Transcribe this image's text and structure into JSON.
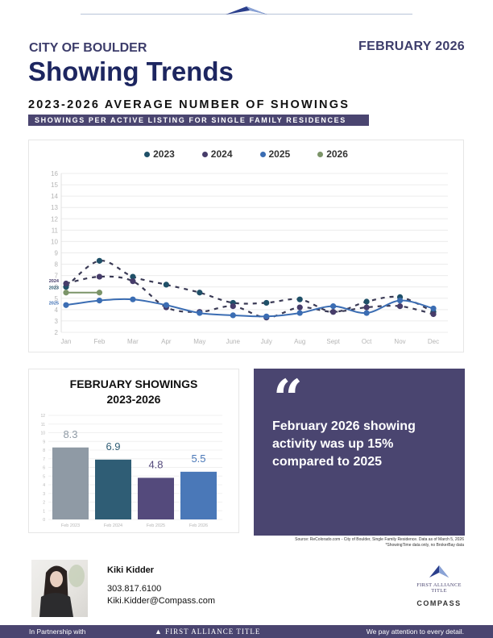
{
  "header": {
    "city": "CITY OF BOULDER",
    "month": "FEBRUARY 2026",
    "title": "Showing Trends",
    "subtitle": "2023-2026 AVERAGE NUMBER OF SHOWINGS",
    "banner": "SHOWINGS PER ACTIVE LISTING FOR SINGLE FAMILY RESIDENCES"
  },
  "colors": {
    "accent": "#4a4570",
    "title": "#1d2660",
    "s2023": "#1f5068",
    "s2024": "#463c6a",
    "s2025": "#3b6db3",
    "s2026": "#7b9468"
  },
  "chart_data": [
    {
      "type": "line",
      "title": "2023-2026 Average Number of Showings",
      "xlabel": "",
      "ylabel": "",
      "ylim": [
        2,
        16
      ],
      "yticks": [
        2,
        3,
        4,
        5,
        6,
        7,
        8,
        9,
        10,
        11,
        12,
        13,
        14,
        15,
        16
      ],
      "grid": true,
      "legend": "top-center",
      "categories": [
        "Jan",
        "Feb",
        "Mar",
        "Apr",
        "May",
        "June",
        "July",
        "Aug",
        "Sept",
        "Oct",
        "Nov",
        "Dec"
      ],
      "series": [
        {
          "name": "2023",
          "style": "dashed",
          "color": "#1f5068",
          "values": [
            6.0,
            8.3,
            6.9,
            6.2,
            5.5,
            4.6,
            4.6,
            4.9,
            3.8,
            4.7,
            5.1,
            3.8
          ]
        },
        {
          "name": "2024",
          "style": "dashed",
          "color": "#463c6a",
          "values": [
            6.3,
            6.9,
            6.5,
            4.2,
            3.8,
            4.3,
            3.3,
            4.2,
            3.8,
            4.2,
            4.3,
            3.6
          ]
        },
        {
          "name": "2025",
          "style": "solid",
          "color": "#3b6db3",
          "values": [
            4.4,
            4.8,
            4.9,
            4.4,
            3.7,
            3.5,
            3.4,
            3.7,
            4.3,
            3.7,
            4.8,
            4.1
          ]
        },
        {
          "name": "2026",
          "style": "solid",
          "color": "#7b9468",
          "values": [
            5.5,
            5.5
          ]
        }
      ],
      "annotations": [
        "2024",
        "2023",
        "2025"
      ]
    },
    {
      "type": "bar",
      "title": "FEBRUARY SHOWINGS 2023-2026",
      "categories": [
        "Feb 2023",
        "Feb 2024",
        "Feb 2025",
        "Feb 2026"
      ],
      "values": [
        8.3,
        6.9,
        4.8,
        5.5
      ],
      "labels": [
        "8.3",
        "6.9",
        "4.8",
        "5.5"
      ],
      "colors": [
        "#8f9aa5",
        "#2f5d75",
        "#544a7c",
        "#4a78b8"
      ],
      "ylim": [
        0,
        12
      ],
      "yticks": [
        0,
        1,
        2,
        3,
        4,
        5,
        6,
        7,
        8,
        9,
        10,
        11,
        12
      ],
      "grid": true
    }
  ],
  "bar_chart": {
    "title_line1": "FEBRUARY SHOWINGS",
    "title_line2": "2023-2026"
  },
  "quote": {
    "mark": "“",
    "text": "February 2026 showing activity was up 15% compared to 2025"
  },
  "source": {
    "line1": "Source: ReColorado.com - City of Boulder, Single Family Residence. Data as of March 5, 2026",
    "line2": "*ShowingTime data only, no BrokerBay data"
  },
  "agent": {
    "name": "Kiki Kidder",
    "phone": "303.817.6100",
    "email": "Kiki.Kidder@Compass.com"
  },
  "logos": {
    "fat_line1": "FIRST ALLIANCE",
    "fat_line2": "TITLE",
    "compass": "COMPASS"
  },
  "footer": {
    "left": "In Partnership with",
    "center": "FIRST ALLIANCE TITLE",
    "right": "We pay attention to every detail."
  }
}
